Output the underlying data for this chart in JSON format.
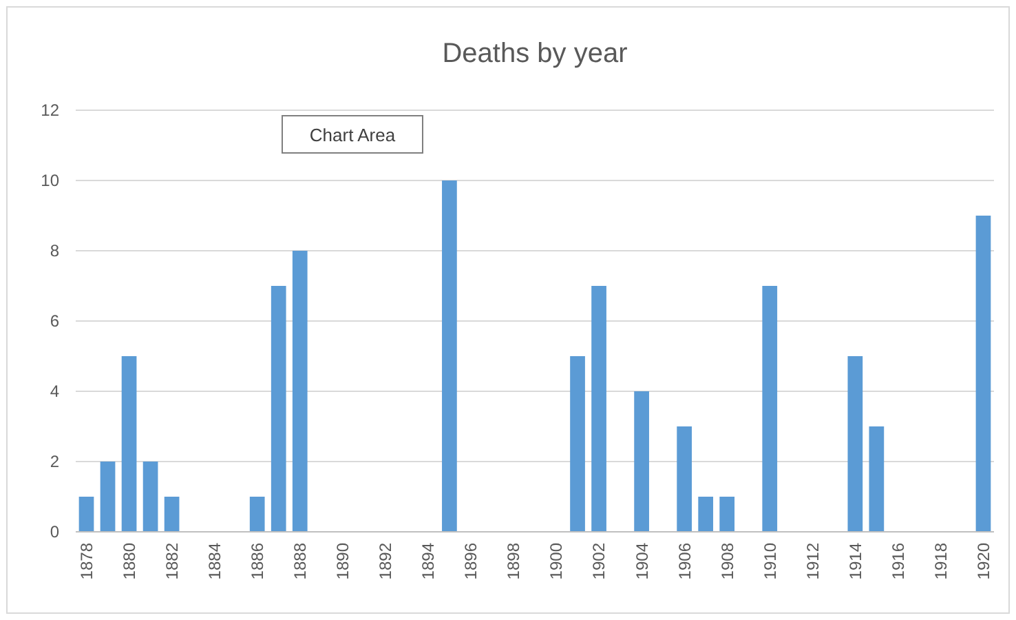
{
  "chart_data": {
    "type": "bar",
    "title": "Deaths by year",
    "categories": [
      "1878",
      null,
      "1880",
      null,
      "1882",
      null,
      "1884",
      null,
      "1886",
      null,
      "1888",
      null,
      "1890",
      null,
      "1892",
      null,
      "1894",
      null,
      "1896",
      null,
      "1898",
      null,
      "1900",
      null,
      "1902",
      null,
      "1904",
      null,
      "1906",
      null,
      "1908",
      null,
      "1910",
      null,
      "1912",
      null,
      "1914",
      null,
      "1916",
      null,
      "1918",
      null,
      "1920"
    ],
    "values": [
      1,
      2,
      5,
      2,
      1,
      0,
      0,
      0,
      1,
      7,
      8,
      0,
      0,
      0,
      0,
      0,
      0,
      10,
      0,
      0,
      0,
      0,
      0,
      5,
      7,
      0,
      4,
      0,
      3,
      1,
      1,
      0,
      7,
      0,
      0,
      0,
      5,
      3,
      0,
      0,
      0,
      0,
      9
    ],
    "color": "#5b9bd5",
    "ylim": [
      0,
      12
    ],
    "yticks": [
      0,
      2,
      4,
      6,
      8,
      10,
      12
    ],
    "grid": "y",
    "annotations": [
      "Chart Area"
    ]
  }
}
